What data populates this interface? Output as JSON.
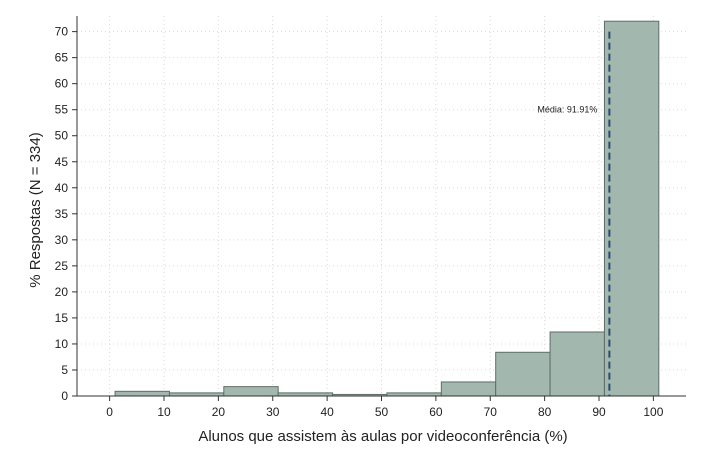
{
  "chart_data": {
    "type": "bar",
    "title": "",
    "xlabel": "Alunos que assistem às aulas por videoconferência (%)",
    "ylabel": "% Respostas (N = 334)",
    "xlim": [
      -6,
      106
    ],
    "ylim": [
      0,
      73
    ],
    "xticks": [
      0,
      10,
      20,
      30,
      40,
      50,
      60,
      70,
      80,
      90,
      100
    ],
    "yticks": [
      0,
      5,
      10,
      15,
      20,
      25,
      30,
      35,
      40,
      45,
      50,
      55,
      60,
      65,
      70
    ],
    "bins": [
      {
        "from": 1,
        "to": 11,
        "value": 0.9
      },
      {
        "from": 11,
        "to": 21,
        "value": 0.6
      },
      {
        "from": 21,
        "to": 31,
        "value": 1.8
      },
      {
        "from": 31,
        "to": 41,
        "value": 0.6
      },
      {
        "from": 41,
        "to": 51,
        "value": 0.3
      },
      {
        "from": 51,
        "to": 61,
        "value": 0.6
      },
      {
        "from": 61,
        "to": 71,
        "value": 2.7
      },
      {
        "from": 71,
        "to": 81,
        "value": 8.4
      },
      {
        "from": 81,
        "to": 91,
        "value": 12.3
      },
      {
        "from": 91,
        "to": 101,
        "value": 72.0
      }
    ],
    "mean": {
      "value": 91.91,
      "label": "Média: 91.91%",
      "label_y": 55
    },
    "grid": true,
    "legend": "none",
    "colors": {
      "bar_fill": "#a2b7ae",
      "bar_stroke": "#5e6e67",
      "mean_line": "#2c4a6f",
      "grid": "#d9d9d9"
    }
  }
}
